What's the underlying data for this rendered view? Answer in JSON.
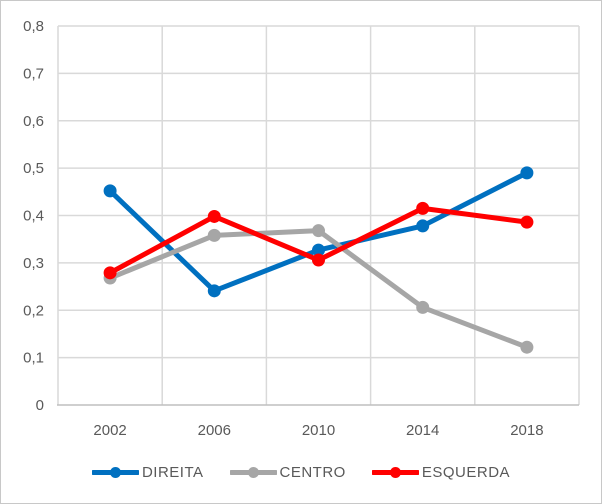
{
  "chart": {
    "text_color": "#595959",
    "gridline_color": "#D9D9D9",
    "axis_line_color": "#BFBFBF",
    "frame_border_color": "#C8C8C8",
    "background_color": "#FFFFFF"
  },
  "chart_data": {
    "type": "line",
    "title": "",
    "xlabel": "",
    "ylabel": "",
    "categories": [
      "2002",
      "2006",
      "2010",
      "2014",
      "2018"
    ],
    "series": [
      {
        "name": "DIREITA",
        "color": "#0070C0",
        "values": [
          0.452,
          0.241,
          0.327,
          0.378,
          0.49
        ]
      },
      {
        "name": "CENTRO",
        "color": "#A6A6A6",
        "values": [
          0.268,
          0.358,
          0.368,
          0.206,
          0.122
        ]
      },
      {
        "name": "ESQUERDA",
        "color": "#FF0000",
        "values": [
          0.279,
          0.398,
          0.306,
          0.415,
          0.386
        ]
      }
    ],
    "ylim": [
      0,
      0.8
    ],
    "y_tick_step": 0.1,
    "y_tick_labels": [
      "0",
      "0,1",
      "0,2",
      "0,3",
      "0,4",
      "0,5",
      "0,6",
      "0,7",
      "0,8"
    ],
    "grid": "on",
    "marker": "circle",
    "legend_position": "bottom"
  }
}
